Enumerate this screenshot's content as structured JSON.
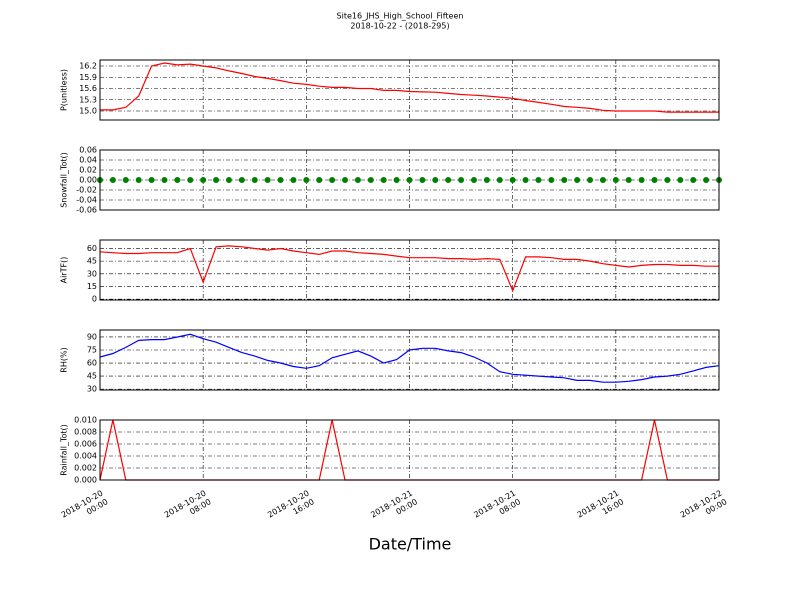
{
  "chart_data": {
    "type": "line",
    "title": "Site16_JHS_High_School_Fifteen",
    "subtitle": "2018-10-22 - (2018-295)",
    "xlabel": "Date/Time",
    "grid": true,
    "x": [
      "2018-10-20 00:00",
      "2018-10-20 01:00",
      "2018-10-20 02:00",
      "2018-10-20 03:00",
      "2018-10-20 04:00",
      "2018-10-20 05:00",
      "2018-10-20 06:00",
      "2018-10-20 07:00",
      "2018-10-20 08:00",
      "2018-10-20 09:00",
      "2018-10-20 10:00",
      "2018-10-20 11:00",
      "2018-10-20 12:00",
      "2018-10-20 13:00",
      "2018-10-20 14:00",
      "2018-10-20 15:00",
      "2018-10-20 16:00",
      "2018-10-20 17:00",
      "2018-10-20 18:00",
      "2018-10-20 19:00",
      "2018-10-20 20:00",
      "2018-10-20 21:00",
      "2018-10-20 22:00",
      "2018-10-20 23:00",
      "2018-10-21 00:00",
      "2018-10-21 01:00",
      "2018-10-21 02:00",
      "2018-10-21 03:00",
      "2018-10-21 04:00",
      "2018-10-21 05:00",
      "2018-10-21 06:00",
      "2018-10-21 07:00",
      "2018-10-21 08:00",
      "2018-10-21 09:00",
      "2018-10-21 10:00",
      "2018-10-21 11:00",
      "2018-10-21 12:00",
      "2018-10-21 13:00",
      "2018-10-21 14:00",
      "2018-10-21 15:00",
      "2018-10-21 16:00",
      "2018-10-21 17:00",
      "2018-10-21 18:00",
      "2018-10-21 19:00",
      "2018-10-21 20:00",
      "2018-10-21 21:00",
      "2018-10-21 22:00",
      "2018-10-21 23:00",
      "2018-10-22 00:00"
    ],
    "xlim": [
      "2018-10-20 00:00",
      "2018-10-22 00:00"
    ],
    "xticks": [
      "2018-10-20 00:00",
      "2018-10-20 08:00",
      "2018-10-20 16:00",
      "2018-10-21 00:00",
      "2018-10-21 08:00",
      "2018-10-21 16:00",
      "2018-10-22 00:00"
    ],
    "panels": [
      {
        "ylabel": "P(unitless)",
        "ylim": [
          14.76,
          16.36
        ],
        "yticks": [
          {
            "value": 15,
            "label": "15.0"
          },
          15.3,
          15.6,
          15.9,
          16.2
        ],
        "series": [
          {
            "color": "#ff0000",
            "marker": false,
            "values": [
              15.03,
              15.03,
              15.1,
              15.4,
              16.2,
              16.28,
              16.23,
              16.25,
              16.2,
              16.15,
              16.07,
              16.0,
              15.92,
              15.87,
              15.81,
              15.74,
              15.71,
              15.66,
              15.63,
              15.63,
              15.6,
              15.6,
              15.55,
              15.55,
              15.52,
              15.51,
              15.5,
              15.47,
              15.44,
              15.42,
              15.4,
              15.37,
              15.34,
              15.28,
              15.23,
              15.18,
              15.12,
              15.1,
              15.07,
              15.02,
              15.0,
              15.0,
              15.0,
              15.0,
              14.97,
              14.97,
              14.97,
              14.97,
              14.97
            ]
          }
        ]
      },
      {
        "ylabel": "Snowfall_Tot()",
        "ylim": [
          -0.06,
          0.06
        ],
        "yticks": [
          -0.06,
          -0.04,
          -0.02,
          {
            "value": 0,
            "label": "0.00"
          },
          0.02,
          0.04,
          0.06
        ],
        "series": [
          {
            "color": "#008000",
            "marker": true,
            "values": [
              0,
              0,
              0,
              0,
              0,
              0,
              0,
              0,
              0,
              0,
              0,
              0,
              0,
              0,
              0,
              0,
              0,
              0,
              0,
              0,
              0,
              0,
              0,
              0,
              0,
              0,
              0,
              0,
              0,
              0,
              0,
              0,
              0,
              0,
              0,
              0,
              0,
              0,
              0,
              0,
              0,
              0,
              0,
              0,
              0,
              0,
              0,
              0,
              0
            ]
          }
        ]
      },
      {
        "ylabel": "AirTF()",
        "ylim": [
          -1,
          70
        ],
        "yticks": [
          0,
          15,
          30,
          45,
          60
        ],
        "series": [
          {
            "color": "#ff0000",
            "marker": false,
            "values": [
              56,
              55,
              54,
              54,
              55,
              55,
              55,
              60,
              20,
              62,
              63,
              62,
              60,
              58,
              60,
              57,
              55,
              53,
              57,
              57,
              55,
              54,
              53,
              51,
              49,
              49,
              49,
              48,
              48,
              47,
              48,
              47,
              10,
              50,
              50,
              49,
              47,
              47,
              45,
              42,
              40,
              38,
              40,
              41,
              41,
              40,
              40,
              39,
              39
            ]
          }
        ]
      },
      {
        "ylabel": "RH(%)",
        "ylim": [
          29,
          98
        ],
        "yticks": [
          30,
          45,
          60,
          75,
          90
        ],
        "series": [
          {
            "color": "#0000ff",
            "marker": false,
            "values": [
              67,
              71,
              78,
              86,
              87,
              87,
              90,
              93,
              88,
              84,
              78,
              72,
              68,
              63,
              60,
              56,
              54,
              57,
              66,
              70,
              74,
              68,
              60,
              64,
              75,
              77,
              77,
              74,
              72,
              67,
              60,
              50,
              47,
              46,
              45,
              44,
              43,
              40,
              40,
              38,
              38,
              39,
              41,
              44,
              45,
              47,
              51,
              55,
              57
            ]
          }
        ]
      },
      {
        "ylabel": "Rainfall_Tot()",
        "ylim": [
          0,
          0.01
        ],
        "yticks": [
          {
            "value": 0,
            "label": "0.000"
          },
          {
            "value": 0.002,
            "label": "0.002"
          },
          {
            "value": 0.004,
            "label": "0.004"
          },
          {
            "value": 0.006,
            "label": "0.006"
          },
          {
            "value": 0.008,
            "label": "0.008"
          },
          {
            "value": 0.01,
            "label": "0.010"
          }
        ],
        "series": [
          {
            "color": "#ff0000",
            "marker": false,
            "values": [
              0,
              0.01,
              0,
              0,
              0,
              0,
              0,
              0,
              0,
              0,
              0,
              0,
              0,
              0,
              0,
              0,
              0,
              0,
              0.01,
              0,
              0,
              0,
              0,
              0,
              0,
              0,
              0,
              0,
              0,
              0,
              0,
              0,
              0,
              0,
              0,
              0,
              0,
              0,
              0,
              0,
              0,
              0,
              0,
              0.01,
              0,
              0,
              0,
              0,
              0
            ]
          }
        ]
      }
    ]
  }
}
